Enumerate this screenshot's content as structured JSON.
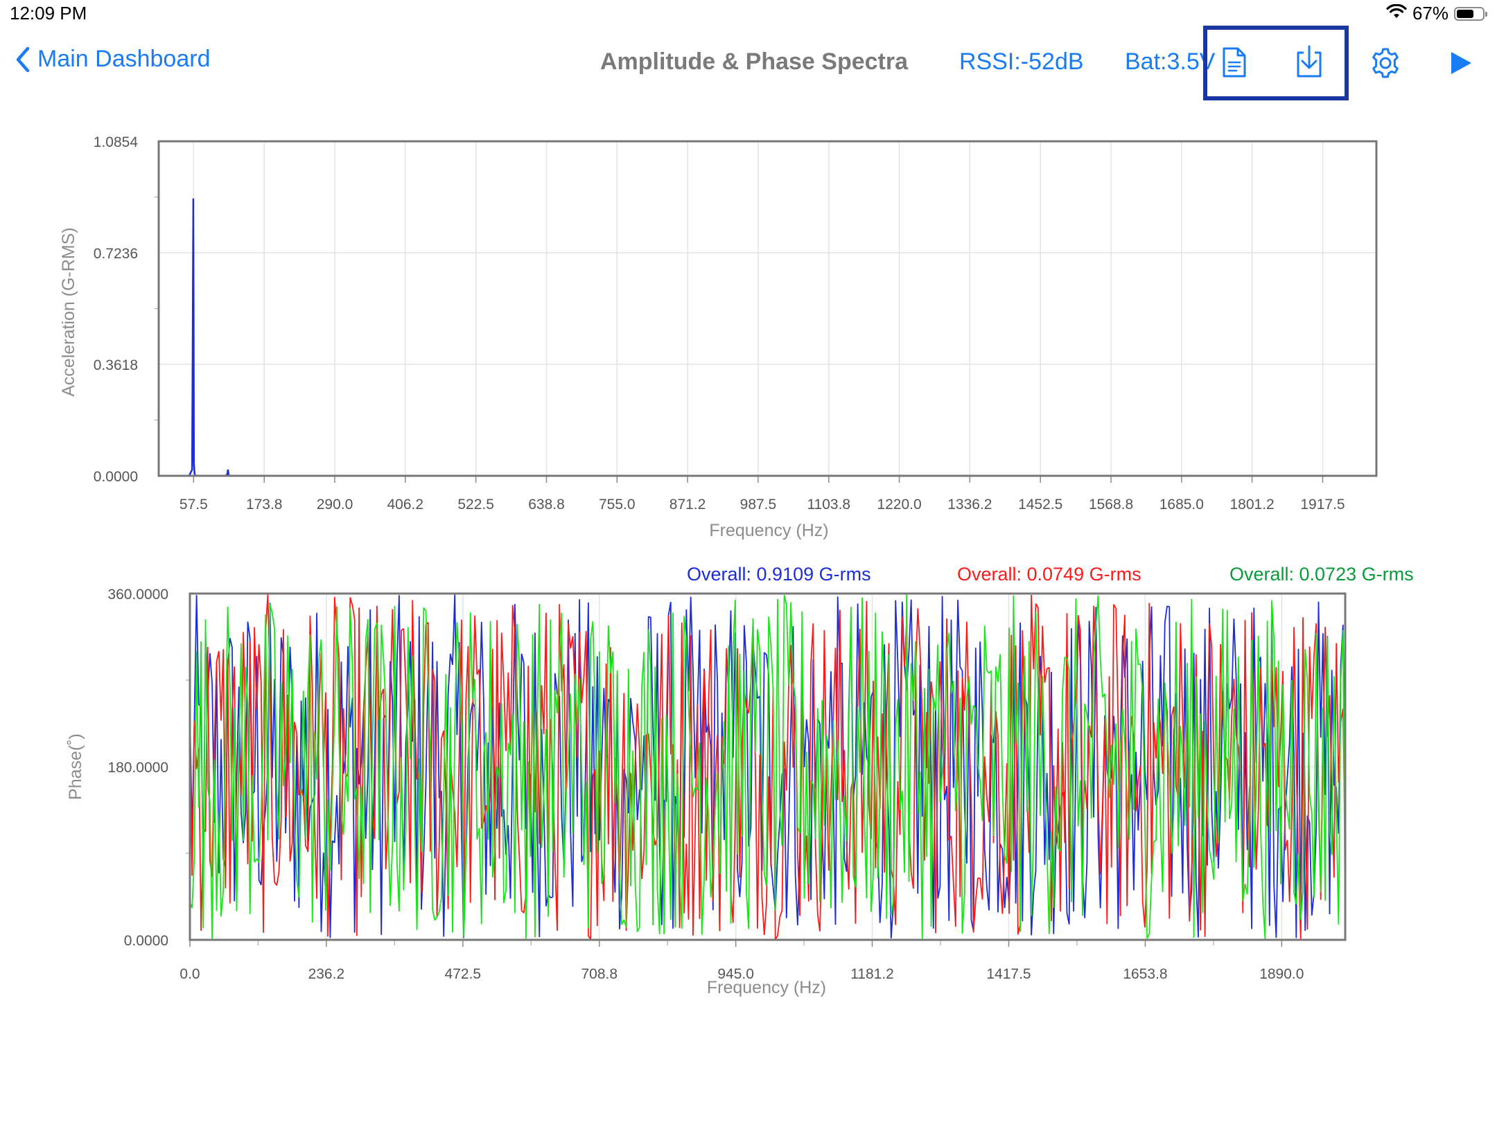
{
  "status_bar": {
    "time": "12:09 PM",
    "battery_pct": "67%",
    "battery_level": 0.67,
    "wifi_icon": "wifi-icon"
  },
  "nav": {
    "back_label": "Main Dashboard",
    "title": "Amplitude & Phase Spectra",
    "rssi": "RSSI:-52dB",
    "battery": "Bat:3.5V",
    "icons": [
      "chevron-left-icon",
      "document-icon",
      "download-icon",
      "gear-icon",
      "play-icon"
    ],
    "accent_color": "#1a7cf5",
    "highlight_color": "#1937a0"
  },
  "overall": [
    {
      "text": "Overall: 0.9109 G-rms",
      "color": "#1b2cd8"
    },
    {
      "text": "Overall: 0.0749 G-rms",
      "color": "#ff1a1a"
    },
    {
      "text": "Overall: 0.0723 G-rms",
      "color": "#0a9a3a"
    }
  ],
  "chart_data": [
    {
      "type": "line",
      "title": "",
      "xlabel": "Frequency (Hz)",
      "ylabel": "Acceleration (G-RMS)",
      "ylim": [
        0,
        1.0854
      ],
      "xlim": [
        0,
        2006
      ],
      "y_ticks": [
        "0.0000",
        "0.3618",
        "0.7236",
        "1.0854"
      ],
      "x_ticks": [
        "57.5",
        "173.8",
        "290.0",
        "406.2",
        "522.5",
        "638.8",
        "755.0",
        "871.2",
        "987.5",
        "1103.8",
        "1220.0",
        "1336.2",
        "1452.5",
        "1568.8",
        "1685.0",
        "1801.2",
        "1917.5"
      ],
      "grid": true,
      "series": [
        {
          "color": "#1b2cd8",
          "x": [
            0,
            50,
            55,
            56,
            57,
            57.5,
            58,
            59,
            60,
            65,
            110,
            113,
            114,
            115,
            116,
            119,
            2006
          ],
          "values": [
            0.0,
            0.0,
            0.02,
            0.44,
            0.9,
            0.55,
            0.04,
            0.01,
            0.0,
            0.0,
            0.0,
            0.005,
            0.02,
            0.005,
            0.0,
            0.0,
            0.0
          ]
        }
      ]
    },
    {
      "type": "line",
      "title": "",
      "xlabel": "Frequency (Hz)",
      "ylabel": "Phase(˚)",
      "ylim": [
        0,
        360
      ],
      "xlim": [
        0,
        2000
      ],
      "y_ticks": [
        "0.0000",
        "180.0000",
        "360.0000"
      ],
      "x_ticks": [
        "0.0",
        "236.2",
        "472.5",
        "708.8",
        "945.0",
        "1181.2",
        "1417.5",
        "1653.8",
        "1890.0"
      ],
      "grid": true,
      "series_note": "random phase noise",
      "series": [
        {
          "color": "#1b2cd8",
          "distribution": "uniform",
          "range": [
            0,
            360
          ]
        },
        {
          "color": "#ff1a1a",
          "distribution": "uniform",
          "range": [
            0,
            360
          ]
        },
        {
          "color": "#19e619",
          "distribution": "uniform",
          "range": [
            0,
            360
          ]
        }
      ]
    }
  ]
}
